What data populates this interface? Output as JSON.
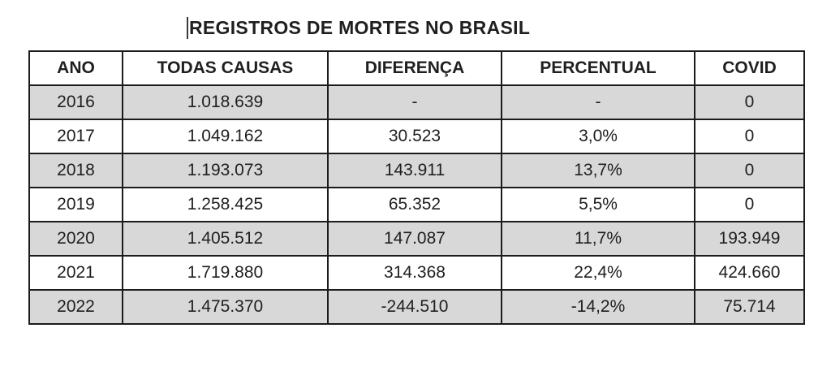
{
  "colors": {
    "shaded_row": "#d8d8d8",
    "plain_row": "#ffffff",
    "border": "#1b1b1b",
    "text": "#1f1f1f",
    "background": "#ffffff"
  },
  "chart_data": {
    "type": "table",
    "title": "REGISTROS DE MORTES NO BRASIL",
    "columns": [
      "ANO",
      "TODAS CAUSAS",
      "DIFERENÇA",
      "PERCENTUAL",
      "COVID"
    ],
    "rows": [
      {
        "shaded": true,
        "cells": [
          "2016",
          "1.018.639",
          "-",
          "-",
          "0"
        ]
      },
      {
        "shaded": false,
        "cells": [
          "2017",
          "1.049.162",
          "30.523",
          "3,0%",
          "0"
        ]
      },
      {
        "shaded": true,
        "cells": [
          "2018",
          "1.193.073",
          "143.911",
          "13,7%",
          "0"
        ]
      },
      {
        "shaded": false,
        "cells": [
          "2019",
          "1.258.425",
          "65.352",
          "5,5%",
          "0"
        ]
      },
      {
        "shaded": true,
        "cells": [
          "2020",
          "1.405.512",
          "147.087",
          "11,7%",
          "193.949"
        ]
      },
      {
        "shaded": false,
        "cells": [
          "2021",
          "1.719.880",
          "314.368",
          "22,4%",
          "424.660"
        ]
      },
      {
        "shaded": true,
        "cells": [
          "2022",
          "1.475.370",
          "-244.510",
          "-14,2%",
          "75.714"
        ]
      }
    ],
    "layout_hints": {
      "shading_pattern": "alternating starting shaded at first data row",
      "alignment": "center"
    }
  }
}
